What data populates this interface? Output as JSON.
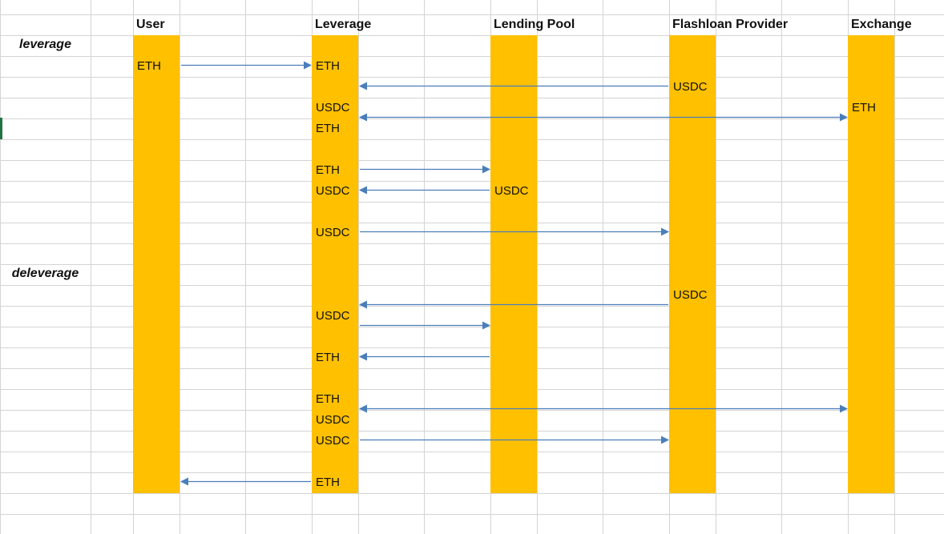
{
  "diagram": {
    "type": "sequence-diagram-spreadsheet",
    "colors": {
      "lane": "#FFC000",
      "arrow": "#4A7EBB",
      "grid": "#D4D4D4",
      "selection": "#217346"
    },
    "lanes": [
      {
        "id": "user",
        "name": "User"
      },
      {
        "id": "leverage",
        "name": "Leverage"
      },
      {
        "id": "pool",
        "name": "Lending Pool"
      },
      {
        "id": "flash",
        "name": "Flashloan Provider"
      },
      {
        "id": "exchange",
        "name": "Exchange"
      }
    ],
    "sections": [
      {
        "label": "leverage",
        "row": 1
      },
      {
        "label": "deleverage",
        "row": 12
      }
    ],
    "labels": [
      {
        "lane": "user",
        "row": 2,
        "text": "ETH"
      },
      {
        "lane": "leverage",
        "row": 2,
        "text": "ETH"
      },
      {
        "lane": "flash",
        "row": 3,
        "text": "USDC"
      },
      {
        "lane": "leverage",
        "row": 4,
        "text": "USDC"
      },
      {
        "lane": "exchange",
        "row": 4,
        "text": "ETH"
      },
      {
        "lane": "leverage",
        "row": 5,
        "text": "ETH"
      },
      {
        "lane": "leverage",
        "row": 7,
        "text": "ETH"
      },
      {
        "lane": "leverage",
        "row": 8,
        "text": "USDC"
      },
      {
        "lane": "pool",
        "row": 8,
        "text": "USDC"
      },
      {
        "lane": "leverage",
        "row": 10,
        "text": "USDC"
      },
      {
        "lane": "flash",
        "row": 13,
        "text": "USDC"
      },
      {
        "lane": "leverage",
        "row": 14,
        "text": "USDC"
      },
      {
        "lane": "leverage",
        "row": 16,
        "text": "ETH"
      },
      {
        "lane": "leverage",
        "row": 18,
        "text": "ETH"
      },
      {
        "lane": "leverage",
        "row": 19,
        "text": "USDC"
      },
      {
        "lane": "leverage",
        "row": 20,
        "text": "USDC"
      },
      {
        "lane": "leverage",
        "row": 22,
        "text": "ETH"
      }
    ],
    "arrows": [
      {
        "from": "user",
        "to": "leverage",
        "row": 2
      },
      {
        "from": "flash",
        "to": "leverage",
        "row": 3
      },
      {
        "from": "leverage",
        "to": "exchange",
        "row": 4.5,
        "bidirectional": true
      },
      {
        "from": "leverage",
        "to": "pool",
        "row": 7
      },
      {
        "from": "pool",
        "to": "leverage",
        "row": 8
      },
      {
        "from": "leverage",
        "to": "flash",
        "row": 10
      },
      {
        "from": "flash",
        "to": "leverage",
        "row": 13.5
      },
      {
        "from": "leverage",
        "to": "pool",
        "row": 14.5
      },
      {
        "from": "pool",
        "to": "leverage",
        "row": 16
      },
      {
        "from": "leverage",
        "to": "exchange",
        "row": 18.5,
        "bidirectional": true
      },
      {
        "from": "leverage",
        "to": "flash",
        "row": 20
      },
      {
        "from": "leverage",
        "to": "user",
        "row": 22
      }
    ]
  }
}
